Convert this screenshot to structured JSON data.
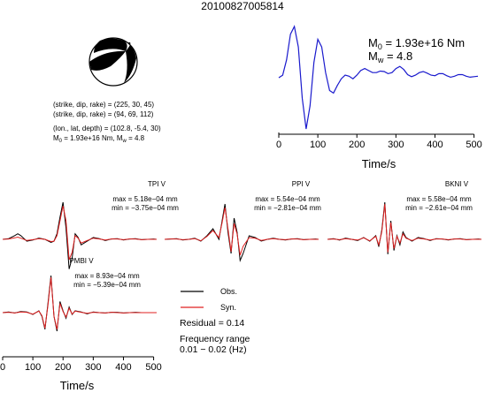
{
  "event_id": "20100827005814",
  "mechanism": {
    "plane1": "(strike, dip, rake) = (225, 30, 45)",
    "plane2": "(strike, dip, rake) = (94, 69, 112)",
    "location": "(lon., lat, depth) = (102.8, -5.4, 30)",
    "moment_text": "M",
    "moment_sub": "0",
    "moment_value": " = 1.93e+16 Nm, M",
    "mw_sub": "w",
    "mw_value": " = 4.8"
  },
  "stf": {
    "m0_label": "M",
    "m0_sub": "0",
    "m0_value": " = 1.93e+16 Nm",
    "mw_label": "M",
    "mw_sub": "w",
    "mw_value": " = 4.8",
    "xlabel": "Time/s",
    "line_color": "#1a1acd"
  },
  "legend": {
    "obs_label": "Obs.",
    "syn_label": "Syn.",
    "obs_color": "#000000",
    "syn_color": "#e02020",
    "residual": "Residual = 0.14",
    "freq_title": "Frequency range",
    "freq_value": "0.01 − 0.02 (Hz)"
  },
  "stations": [
    {
      "name": "TPI V",
      "max": "max = 5.18e−04 mm",
      "min": "min = −3.75e−04 mm"
    },
    {
      "name": "PPI V",
      "max": "max = 5.54e−04 mm",
      "min": "min = −2.81e−04 mm"
    },
    {
      "name": "BKNI V",
      "max": "max = 5.58e−04 mm",
      "min": "min = −2.61e−04 mm"
    },
    {
      "name": "PMBI V",
      "max": "max = 8.93e−04 mm",
      "min": "min = −5.39e−04 mm"
    }
  ],
  "wave_axis": {
    "xlabel": "Time/s"
  },
  "chart_data": [
    {
      "type": "line",
      "name": "source-time-function",
      "xlim": [
        0,
        510
      ],
      "xticks": [
        0,
        100,
        200,
        300,
        400,
        500
      ],
      "x": [
        0,
        10,
        20,
        30,
        40,
        50,
        60,
        70,
        80,
        90,
        100,
        110,
        120,
        130,
        140,
        150,
        160,
        170,
        180,
        190,
        200,
        210,
        220,
        230,
        240,
        250,
        260,
        270,
        280,
        290,
        300,
        310,
        320,
        330,
        340,
        350,
        360,
        370,
        380,
        390,
        400,
        410,
        420,
        430,
        440,
        450,
        460,
        470,
        480,
        490,
        500,
        510
      ],
      "y": [
        0.0,
        0.05,
        0.35,
        0.85,
        1.0,
        0.6,
        -0.4,
        -1.0,
        -0.55,
        0.3,
        0.75,
        0.6,
        0.1,
        -0.25,
        -0.3,
        -0.15,
        -0.02,
        0.05,
        0.03,
        -0.02,
        0.05,
        0.14,
        0.18,
        0.14,
        0.1,
        0.1,
        0.13,
        0.12,
        0.08,
        0.1,
        0.18,
        0.22,
        0.16,
        0.06,
        0.02,
        0.05,
        0.1,
        0.12,
        0.09,
        0.05,
        0.04,
        0.08,
        0.08,
        0.04,
        0.01,
        0.03,
        0.06,
        0.06,
        0.03,
        0.01,
        0.02,
        0.03
      ]
    },
    {
      "type": "line",
      "name": "waveforms",
      "xlim": [
        0,
        510
      ],
      "xticks": [
        0,
        100,
        200,
        300,
        400,
        500
      ],
      "traces": [
        {
          "station": "TPI V",
          "x": [
            0,
            20,
            40,
            50,
            60,
            80,
            100,
            120,
            140,
            160,
            170,
            180,
            190,
            200,
            210,
            220,
            230,
            240,
            250,
            260,
            280,
            300,
            320,
            340,
            360,
            380,
            400,
            420,
            440,
            460,
            480,
            500,
            510
          ],
          "obs": [
            0.0,
            0.02,
            0.1,
            0.15,
            0.1,
            -0.05,
            -0.02,
            0.03,
            0.0,
            -0.08,
            -0.05,
            0.15,
            0.6,
            1.0,
            0.3,
            -0.8,
            -0.5,
            0.15,
            0.05,
            -0.15,
            -0.05,
            0.05,
            0.02,
            -0.03,
            0.01,
            0.02,
            -0.02,
            0.01,
            0.02,
            -0.01,
            0.0,
            0.01,
            0.0
          ],
          "syn": [
            0.0,
            0.01,
            0.04,
            0.06,
            0.03,
            -0.03,
            -0.01,
            0.02,
            0.0,
            -0.06,
            -0.05,
            0.1,
            0.5,
            0.9,
            0.5,
            -0.55,
            -0.35,
            0.1,
            0.03,
            -0.1,
            -0.03,
            0.03,
            0.01,
            -0.02,
            0.01,
            0.01,
            -0.01,
            0.01,
            0.01,
            -0.01,
            0.0,
            0.0,
            0.0
          ]
        },
        {
          "station": "PPI V",
          "x": [
            0,
            20,
            40,
            60,
            80,
            100,
            120,
            140,
            160,
            180,
            190,
            200,
            210,
            220,
            230,
            240,
            250,
            260,
            280,
            300,
            320,
            340,
            360,
            380,
            400,
            420,
            440,
            460,
            480,
            500,
            510
          ],
          "obs": [
            0.0,
            0.01,
            0.02,
            -0.02,
            0.0,
            0.03,
            -0.05,
            0.1,
            0.3,
            0.0,
            0.5,
            1.0,
            0.2,
            -0.4,
            0.6,
            0.2,
            -0.6,
            -0.4,
            0.1,
            0.05,
            -0.05,
            0.0,
            0.03,
            0.0,
            -0.02,
            0.01,
            0.02,
            -0.01,
            0.0,
            0.01,
            0.0
          ],
          "syn": [
            0.0,
            0.01,
            0.01,
            -0.01,
            0.0,
            0.02,
            -0.04,
            0.08,
            0.25,
            0.05,
            0.45,
            0.9,
            0.3,
            -0.35,
            0.45,
            0.15,
            -0.45,
            -0.2,
            0.05,
            0.03,
            -0.03,
            0.0,
            0.02,
            0.0,
            -0.01,
            0.01,
            0.01,
            -0.01,
            0.0,
            0.0,
            0.0
          ]
        },
        {
          "station": "BKNI V",
          "x": [
            0,
            20,
            40,
            60,
            80,
            100,
            120,
            140,
            160,
            170,
            180,
            190,
            200,
            210,
            220,
            230,
            240,
            250,
            260,
            280,
            300,
            320,
            340,
            360,
            380,
            400,
            420,
            440,
            460,
            480,
            500,
            510
          ],
          "obs": [
            0.0,
            0.02,
            -0.02,
            0.03,
            0.0,
            -0.03,
            0.05,
            -0.05,
            0.1,
            -0.2,
            0.25,
            1.0,
            -0.4,
            0.5,
            -0.3,
            0.1,
            -0.15,
            0.2,
            0.05,
            -0.05,
            0.05,
            0.02,
            -0.03,
            0.02,
            0.01,
            -0.02,
            0.01,
            0.02,
            -0.01,
            0.0,
            0.01,
            0.0
          ],
          "syn": [
            0.0,
            0.01,
            -0.01,
            0.02,
            0.0,
            -0.02,
            0.04,
            -0.04,
            0.08,
            -0.15,
            0.2,
            0.95,
            -0.35,
            0.45,
            -0.25,
            0.08,
            -0.1,
            0.15,
            0.03,
            -0.03,
            0.03,
            0.01,
            -0.02,
            0.01,
            0.01,
            -0.01,
            0.01,
            0.01,
            -0.01,
            0.0,
            0.0,
            0.0
          ]
        },
        {
          "station": "PMBI V",
          "x": [
            0,
            20,
            40,
            60,
            80,
            100,
            120,
            130,
            140,
            150,
            160,
            170,
            180,
            190,
            200,
            210,
            220,
            230,
            240,
            260,
            280,
            300,
            320,
            340,
            360,
            380,
            400,
            420,
            440,
            460,
            480,
            500,
            510
          ],
          "obs": [
            0.0,
            0.02,
            -0.01,
            0.03,
            0.02,
            -0.05,
            0.05,
            -0.1,
            -0.45,
            0.25,
            1.0,
            -0.1,
            -0.5,
            0.3,
            0.05,
            -0.15,
            0.15,
            -0.05,
            0.05,
            0.02,
            -0.03,
            0.02,
            0.0,
            -0.01,
            0.01,
            0.01,
            -0.01,
            0.0,
            0.01,
            0.0,
            0.0,
            0.0,
            0.0
          ],
          "syn": [
            0.0,
            0.01,
            -0.01,
            0.02,
            0.01,
            -0.04,
            0.04,
            -0.08,
            -0.42,
            0.2,
            0.95,
            -0.1,
            -0.45,
            0.25,
            0.03,
            -0.12,
            0.12,
            -0.04,
            0.04,
            0.01,
            -0.02,
            0.01,
            0.0,
            -0.01,
            0.01,
            0.0,
            -0.01,
            0.0,
            0.0,
            0.0,
            0.0,
            0.0,
            0.0
          ]
        }
      ]
    }
  ]
}
